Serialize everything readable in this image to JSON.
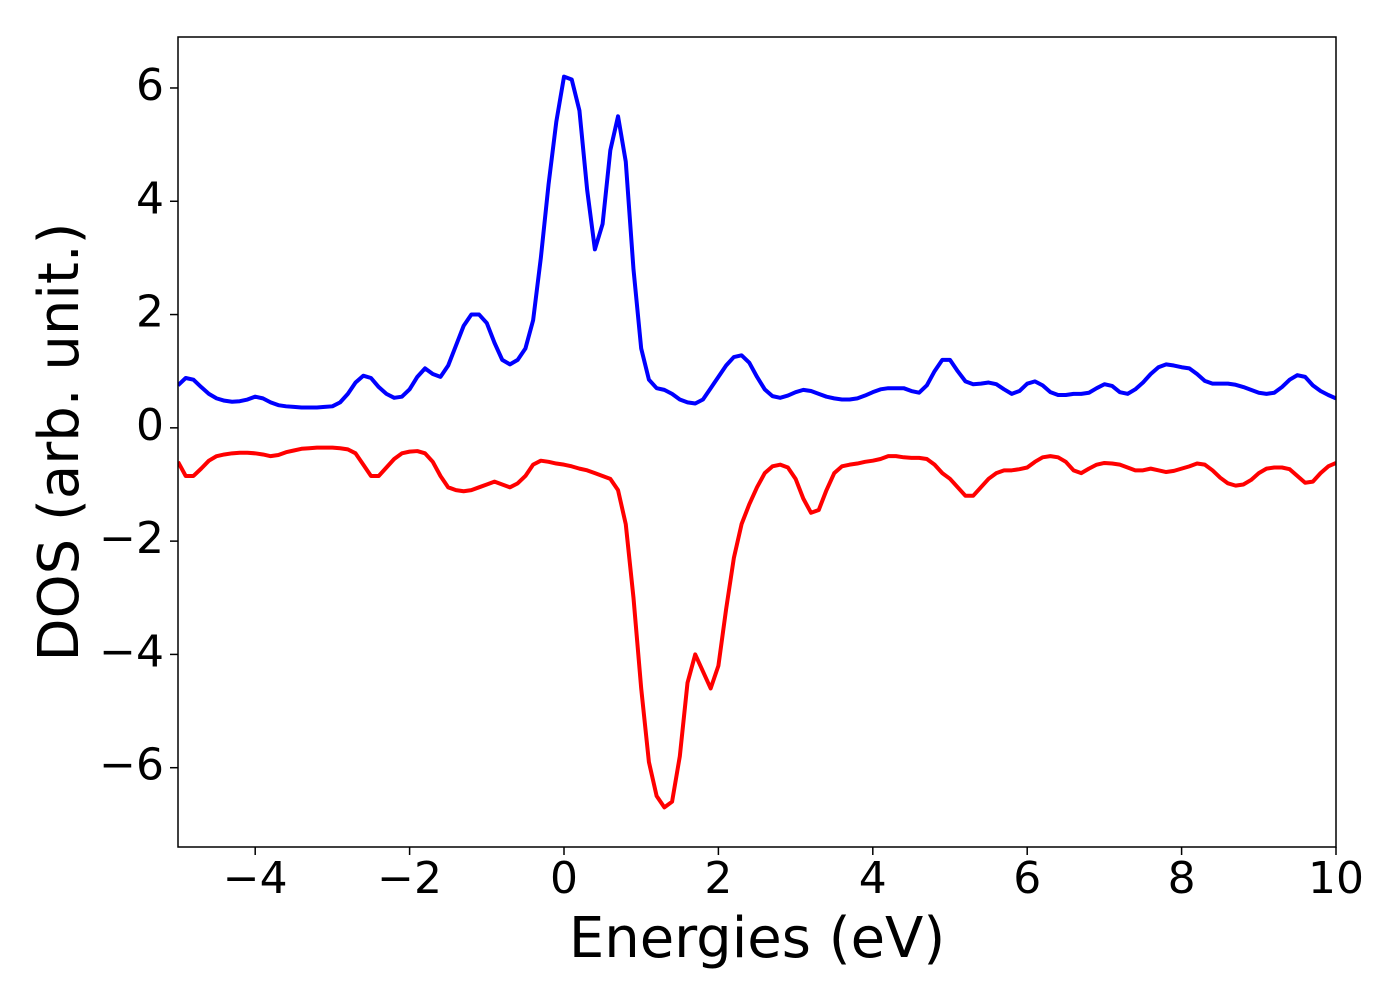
{
  "chart_data": {
    "type": "line",
    "xlabel": "Energies (eV)",
    "ylabel": "DOS (arb. unit.)",
    "x": [
      -5,
      -4.9,
      -4.8,
      -4.7,
      -4.6,
      -4.5,
      -4.4,
      -4.3,
      -4.2,
      -4.1,
      -4,
      -3.9,
      -3.8,
      -3.7,
      -3.6,
      -3.5,
      -3.4,
      -3.3,
      -3.2,
      -3.1,
      -3,
      -2.9,
      -2.8,
      -2.7,
      -2.6,
      -2.5,
      -2.4,
      -2.3,
      -2.2,
      -2.1,
      -2,
      -1.9,
      -1.8,
      -1.7,
      -1.6,
      -1.5,
      -1.4,
      -1.3,
      -1.2,
      -1.1,
      -1,
      -0.9,
      -0.8,
      -0.7,
      -0.6,
      -0.5,
      -0.4,
      -0.3,
      -0.2,
      -0.1,
      0,
      0.1,
      0.2,
      0.3,
      0.4,
      0.5,
      0.6,
      0.7,
      0.8,
      0.9,
      1,
      1.1,
      1.2,
      1.3,
      1.4,
      1.5,
      1.6,
      1.7,
      1.8,
      1.9,
      2,
      2.1,
      2.2,
      2.3,
      2.4,
      2.5,
      2.6,
      2.7,
      2.8,
      2.9,
      3,
      3.1,
      3.2,
      3.3,
      3.4,
      3.5,
      3.6,
      3.7,
      3.8,
      3.9,
      4,
      4.1,
      4.2,
      4.3,
      4.4,
      4.5,
      4.6,
      4.7,
      4.8,
      4.9,
      5,
      5.1,
      5.2,
      5.3,
      5.4,
      5.5,
      5.6,
      5.7,
      5.8,
      5.9,
      6,
      6.1,
      6.2,
      6.3,
      6.4,
      6.5,
      6.6,
      6.7,
      6.8,
      6.9,
      7,
      7.1,
      7.2,
      7.3,
      7.4,
      7.5,
      7.6,
      7.7,
      7.8,
      7.9,
      8,
      8.1,
      8.2,
      8.3,
      8.4,
      8.5,
      8.6,
      8.7,
      8.8,
      8.9,
      9,
      9.1,
      9.2,
      9.3,
      9.4,
      9.5,
      9.6,
      9.7,
      9.8,
      9.9,
      10
    ],
    "series": [
      {
        "color": "#0000ff",
        "values": [
          0.75,
          0.88,
          0.85,
          0.72,
          0.6,
          0.52,
          0.48,
          0.46,
          0.47,
          0.5,
          0.55,
          0.52,
          0.45,
          0.4,
          0.38,
          0.37,
          0.36,
          0.36,
          0.36,
          0.37,
          0.38,
          0.45,
          0.6,
          0.8,
          0.92,
          0.88,
          0.72,
          0.6,
          0.53,
          0.55,
          0.68,
          0.9,
          1.05,
          0.95,
          0.9,
          1.1,
          1.45,
          1.8,
          2.0,
          2.0,
          1.85,
          1.5,
          1.2,
          1.12,
          1.2,
          1.4,
          1.9,
          3.0,
          4.3,
          5.4,
          6.2,
          6.15,
          5.6,
          4.2,
          3.15,
          3.6,
          4.9,
          5.5,
          4.7,
          2.8,
          1.4,
          0.85,
          0.7,
          0.67,
          0.6,
          0.5,
          0.45,
          0.43,
          0.5,
          0.7,
          0.9,
          1.1,
          1.25,
          1.28,
          1.15,
          0.9,
          0.68,
          0.56,
          0.53,
          0.57,
          0.63,
          0.67,
          0.65,
          0.6,
          0.55,
          0.52,
          0.5,
          0.5,
          0.52,
          0.57,
          0.63,
          0.68,
          0.7,
          0.7,
          0.7,
          0.65,
          0.62,
          0.75,
          1.0,
          1.2,
          1.2,
          1.0,
          0.82,
          0.77,
          0.78,
          0.8,
          0.77,
          0.68,
          0.6,
          0.65,
          0.78,
          0.82,
          0.75,
          0.63,
          0.58,
          0.58,
          0.6,
          0.6,
          0.62,
          0.7,
          0.77,
          0.74,
          0.63,
          0.6,
          0.68,
          0.8,
          0.95,
          1.07,
          1.12,
          1.1,
          1.07,
          1.05,
          0.95,
          0.83,
          0.78,
          0.78,
          0.78,
          0.76,
          0.72,
          0.67,
          0.62,
          0.6,
          0.62,
          0.72,
          0.85,
          0.93,
          0.9,
          0.75,
          0.65,
          0.58,
          0.52
        ]
      },
      {
        "color": "#ff0000",
        "values": [
          -0.6,
          -0.85,
          -0.85,
          -0.72,
          -0.58,
          -0.5,
          -0.47,
          -0.45,
          -0.44,
          -0.44,
          -0.45,
          -0.47,
          -0.5,
          -0.48,
          -0.43,
          -0.4,
          -0.37,
          -0.36,
          -0.35,
          -0.35,
          -0.35,
          -0.36,
          -0.38,
          -0.45,
          -0.65,
          -0.85,
          -0.85,
          -0.7,
          -0.55,
          -0.45,
          -0.42,
          -0.41,
          -0.45,
          -0.6,
          -0.85,
          -1.05,
          -1.1,
          -1.12,
          -1.1,
          -1.05,
          -1.0,
          -0.95,
          -1.0,
          -1.05,
          -0.98,
          -0.85,
          -0.65,
          -0.58,
          -0.6,
          -0.63,
          -0.65,
          -0.68,
          -0.72,
          -0.75,
          -0.8,
          -0.85,
          -0.9,
          -1.1,
          -1.7,
          -3.0,
          -4.6,
          -5.9,
          -6.5,
          -6.7,
          -6.6,
          -5.8,
          -4.5,
          -4.0,
          -4.3,
          -4.6,
          -4.2,
          -3.2,
          -2.3,
          -1.7,
          -1.35,
          -1.05,
          -0.8,
          -0.68,
          -0.65,
          -0.7,
          -0.9,
          -1.25,
          -1.5,
          -1.45,
          -1.1,
          -0.8,
          -0.68,
          -0.65,
          -0.63,
          -0.6,
          -0.58,
          -0.55,
          -0.5,
          -0.5,
          -0.52,
          -0.53,
          -0.53,
          -0.55,
          -0.65,
          -0.8,
          -0.9,
          -1.05,
          -1.2,
          -1.2,
          -1.05,
          -0.9,
          -0.8,
          -0.75,
          -0.75,
          -0.73,
          -0.7,
          -0.6,
          -0.52,
          -0.5,
          -0.52,
          -0.6,
          -0.75,
          -0.8,
          -0.72,
          -0.65,
          -0.62,
          -0.63,
          -0.65,
          -0.7,
          -0.75,
          -0.75,
          -0.72,
          -0.75,
          -0.78,
          -0.76,
          -0.72,
          -0.68,
          -0.63,
          -0.65,
          -0.75,
          -0.88,
          -0.98,
          -1.02,
          -1.0,
          -0.92,
          -0.8,
          -0.72,
          -0.7,
          -0.7,
          -0.73,
          -0.85,
          -0.97,
          -0.95,
          -0.8,
          -0.68,
          -0.62
        ]
      }
    ],
    "xlim": [
      -5,
      10
    ],
    "xticks": [
      {
        "value": -4,
        "label": "−4"
      },
      {
        "value": -2,
        "label": "−2"
      },
      0,
      2,
      4,
      6,
      8,
      10
    ],
    "ylim": [
      -7.4,
      6.9
    ],
    "yticks": [
      {
        "value": -6,
        "label": "−6"
      },
      {
        "value": -4,
        "label": "−4"
      },
      {
        "value": -2,
        "label": "−2"
      },
      0,
      2,
      4,
      6
    ],
    "grid": false
  }
}
